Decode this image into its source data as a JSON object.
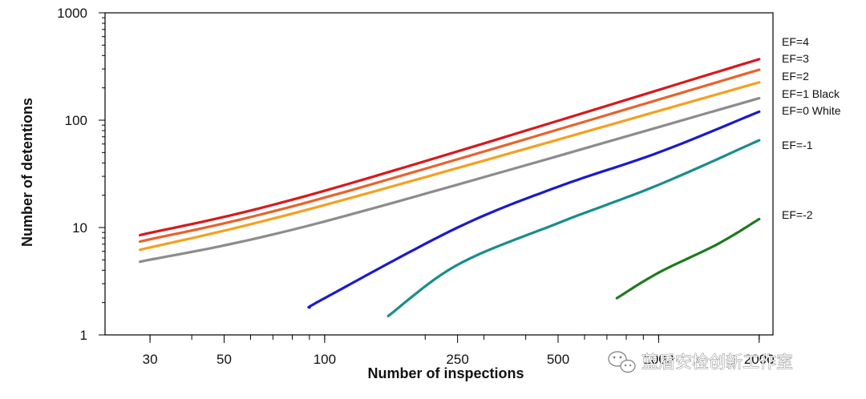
{
  "chart_data": {
    "type": "line",
    "title": "",
    "xlabel": "Number of inspections",
    "ylabel": "Number of detentions",
    "x_scale": "log",
    "y_scale": "log",
    "xlim": [
      22,
      2200
    ],
    "ylim": [
      1,
      1000
    ],
    "x_ticks": [
      30,
      50,
      100,
      250,
      500,
      1000,
      2000
    ],
    "x_tick_labels": [
      "30",
      "50",
      "100",
      "250",
      "500",
      "1000",
      "2000"
    ],
    "y_ticks": [
      1,
      10,
      100,
      1000
    ],
    "y_tick_labels": [
      "1",
      "10",
      "100",
      "1000"
    ],
    "grid": false,
    "legend": "right",
    "series": [
      {
        "name": "EF=4",
        "color": "#d7191c",
        "x": [
          28,
          100,
          2000
        ],
        "y": [
          8.5,
          22,
          370
        ]
      },
      {
        "name": "EF=3",
        "color": "#e8622a",
        "x": [
          28,
          100,
          2000
        ],
        "y": [
          7.4,
          19,
          295
        ]
      },
      {
        "name": "EF=2",
        "color": "#f5a01e",
        "x": [
          28,
          100,
          2000
        ],
        "y": [
          6.2,
          16.2,
          225
        ]
      },
      {
        "name": "EF=1 Black",
        "color": "#8c8c8c",
        "x": [
          28,
          100,
          2000
        ],
        "y": [
          4.8,
          11.4,
          160
        ]
      },
      {
        "name": "EF=0 White",
        "color": "#1a1acd",
        "x": [
          90,
          100,
          250,
          500,
          1000,
          2000
        ],
        "y": [
          1.8,
          2.2,
          10,
          24,
          50,
          120
        ]
      },
      {
        "name": "EF=-1",
        "color": "#1a8c8c",
        "x": [
          155,
          250,
          500,
          1000,
          2000
        ],
        "y": [
          1.5,
          4.5,
          11,
          25,
          65
        ]
      },
      {
        "name": "EF=-2",
        "color": "#1f7a1f",
        "x": [
          750,
          1000,
          1500,
          2000
        ],
        "y": [
          2.2,
          3.8,
          7,
          12
        ]
      }
    ]
  },
  "watermark": {
    "icon": "wechat-icon",
    "text": "蓝盾安检创新工作室"
  }
}
